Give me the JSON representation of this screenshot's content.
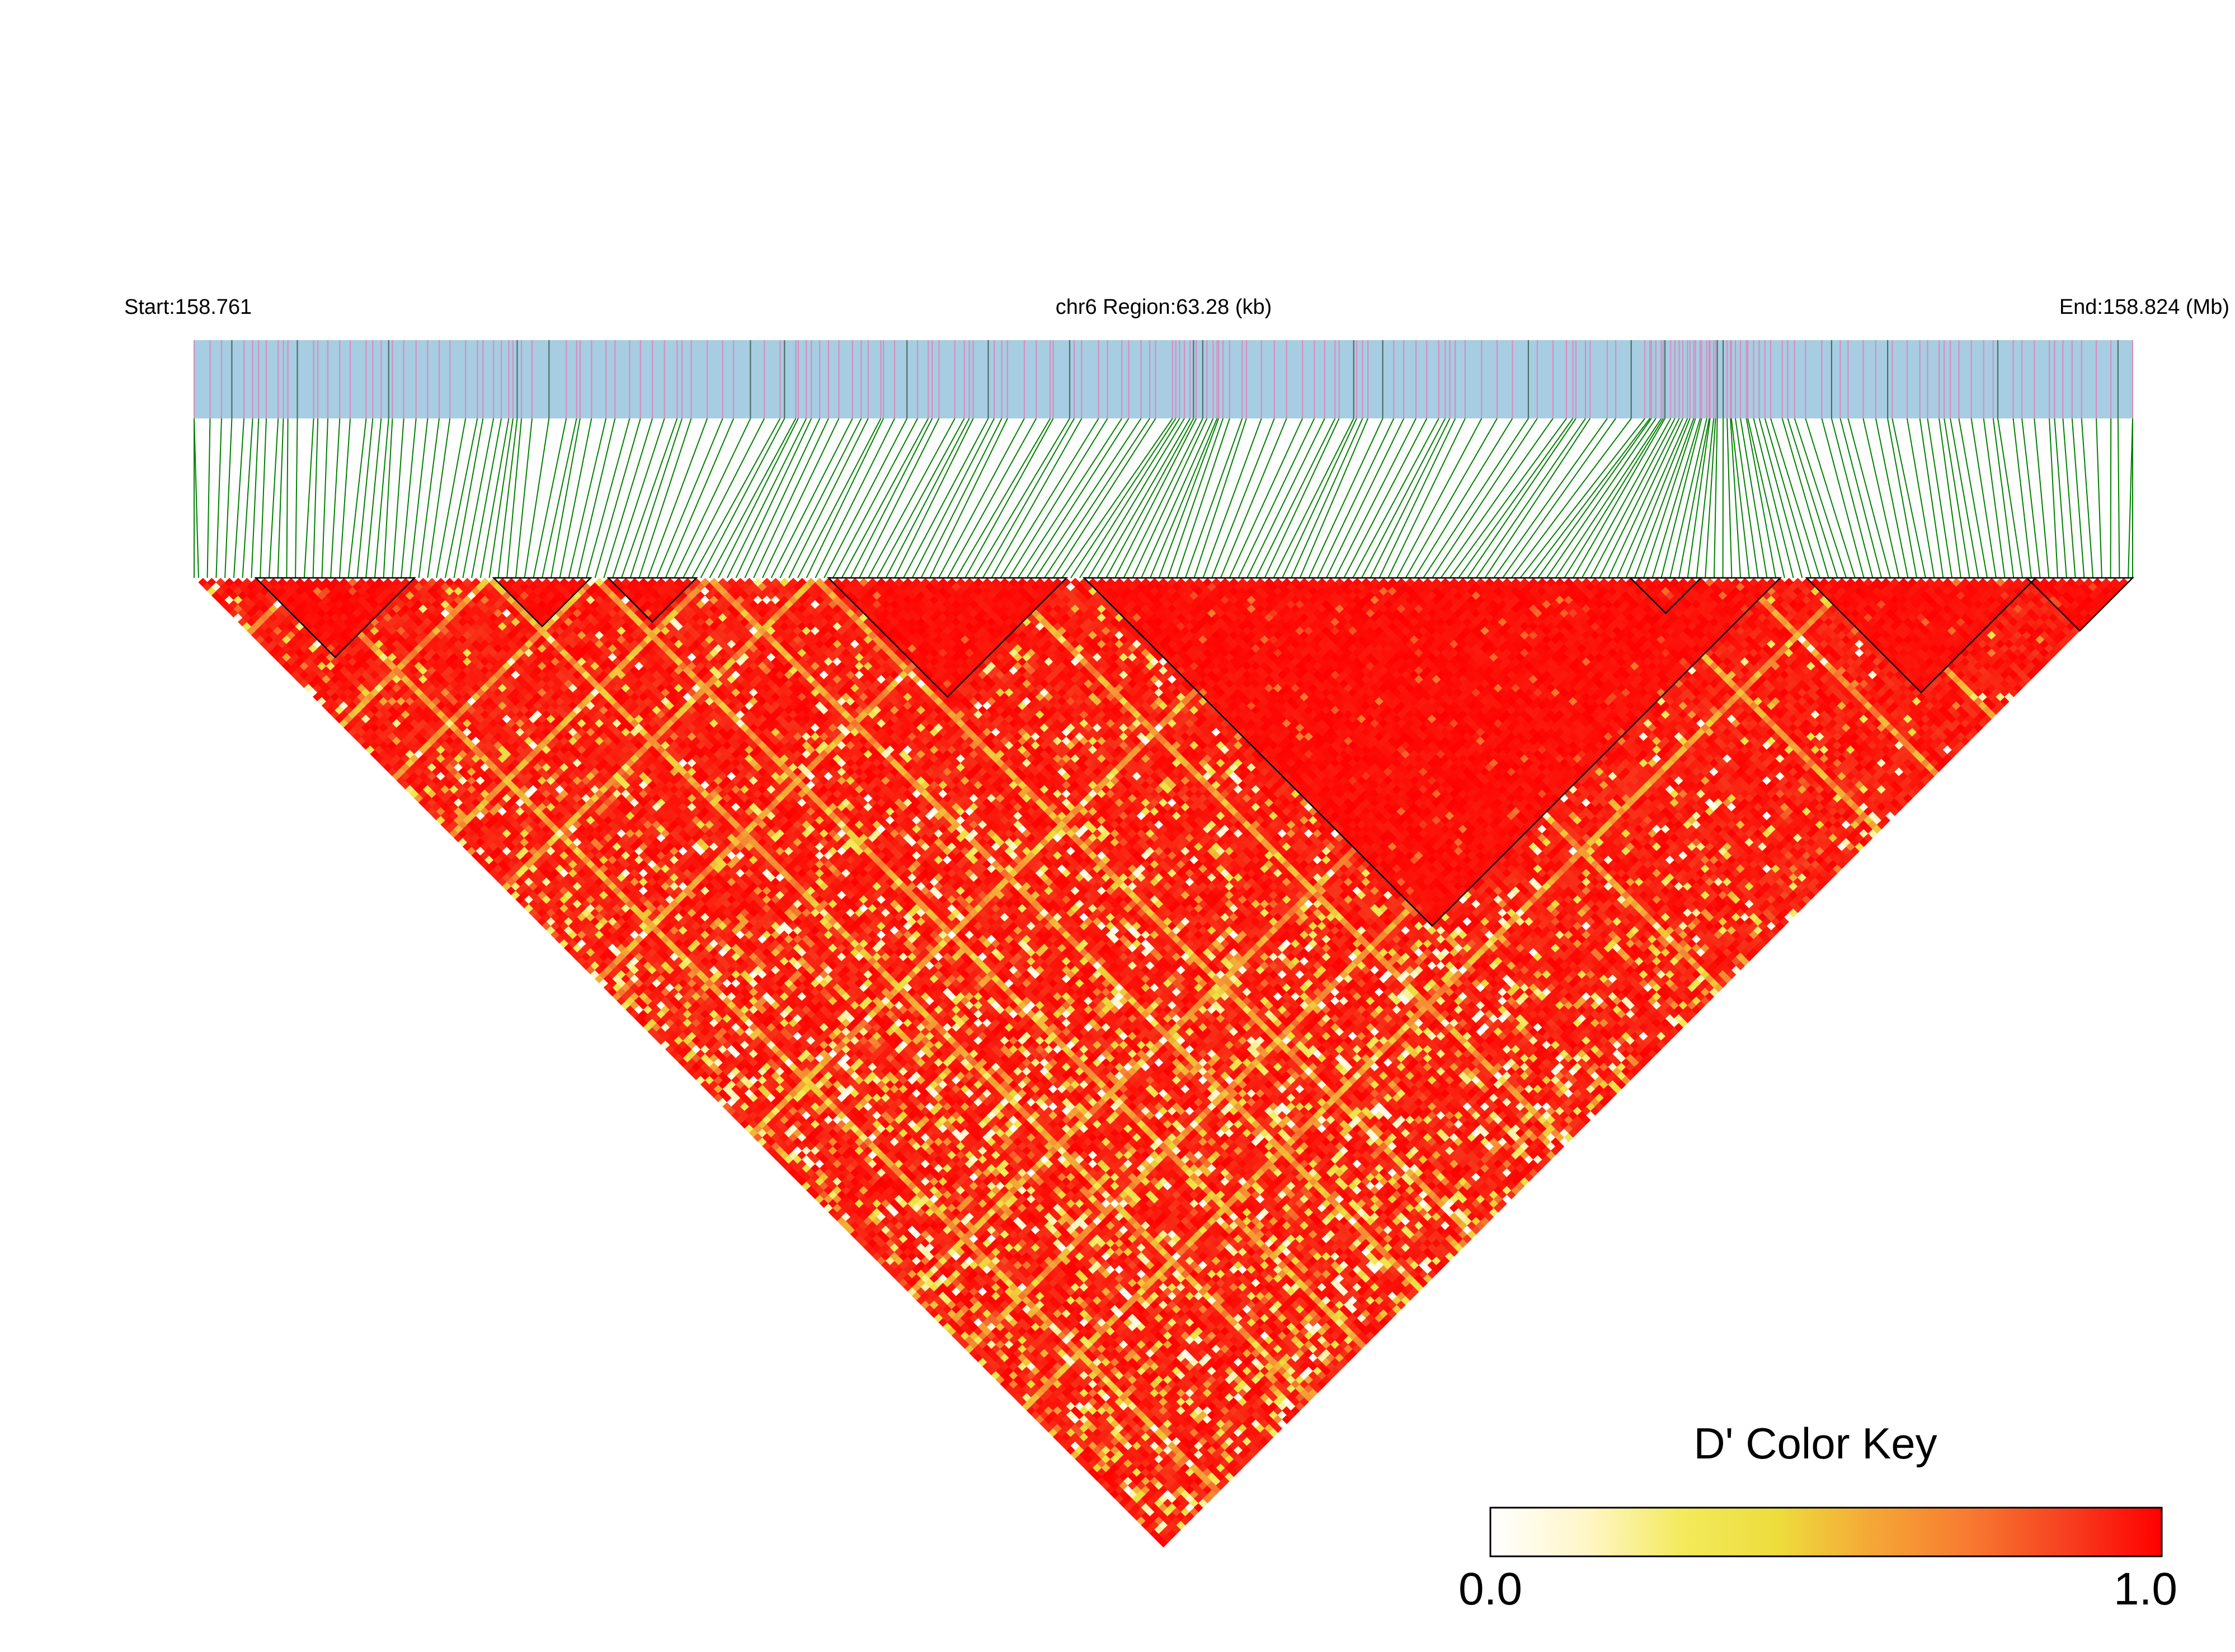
{
  "header": {
    "start_label": "Start:158.761",
    "region_label": "chr6 Region:63.28 (kb)",
    "end_label": "End:158.824 (Mb)"
  },
  "color_key": {
    "title": "D' Color Key",
    "min_label": "0.0",
    "max_label": "1.0",
    "stops": [
      "#ffffff",
      "#fff6c8",
      "#f3ea5c",
      "#eddc3c",
      "#f5a636",
      "#f77a30",
      "#f64020",
      "#ff0000"
    ]
  },
  "colors": {
    "track_fill": "#a6cde2",
    "snp_tick_pink": "#d98cc0",
    "snp_tick_dark": "#4e6e66",
    "connector_green": "#008000",
    "ld_high": "#ff0000"
  },
  "snp_count": 220,
  "haplotype_blocks": [
    {
      "from_snp": 7,
      "to_snp": 24
    },
    {
      "from_snp": 34,
      "to_snp": 44
    },
    {
      "from_snp": 47,
      "to_snp": 56
    },
    {
      "from_snp": 72,
      "to_snp": 98
    },
    {
      "from_snp": 101,
      "to_snp": 179
    },
    {
      "from_snp": 163,
      "to_snp": 170
    },
    {
      "from_snp": 183,
      "to_snp": 208
    },
    {
      "from_snp": 208,
      "to_snp": 219
    }
  ]
}
